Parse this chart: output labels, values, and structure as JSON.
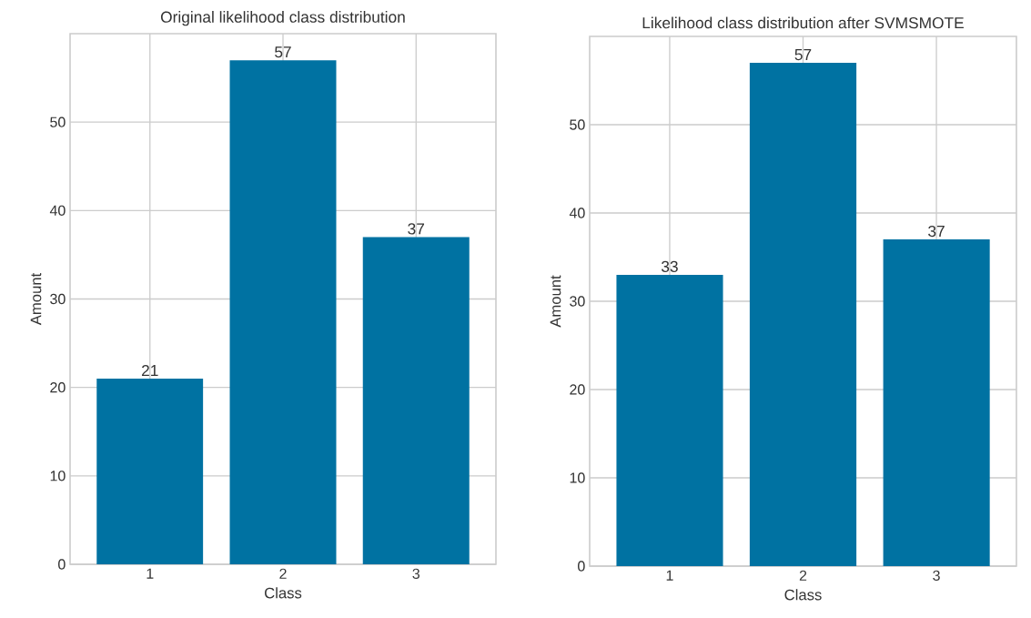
{
  "chart_data": [
    {
      "type": "bar",
      "title": "Original likelihood class distribution",
      "xlabel": "Class",
      "ylabel": "Amount",
      "categories": [
        "1",
        "2",
        "3"
      ],
      "values": [
        21,
        57,
        37
      ],
      "color": "#0072a2",
      "ylim": [
        0,
        60
      ],
      "yticks": [
        0,
        10,
        20,
        30,
        40,
        50
      ],
      "grid": true,
      "data_labels": true
    },
    {
      "type": "bar",
      "title": "Likelihood class distribution after SVMSMOTE",
      "xlabel": "Class",
      "ylabel": "Amount",
      "categories": [
        "1",
        "2",
        "3"
      ],
      "values": [
        33,
        57,
        37
      ],
      "color": "#0072a2",
      "ylim": [
        0,
        60
      ],
      "yticks": [
        0,
        10,
        20,
        30,
        40,
        50
      ],
      "grid": true,
      "data_labels": true
    }
  ]
}
